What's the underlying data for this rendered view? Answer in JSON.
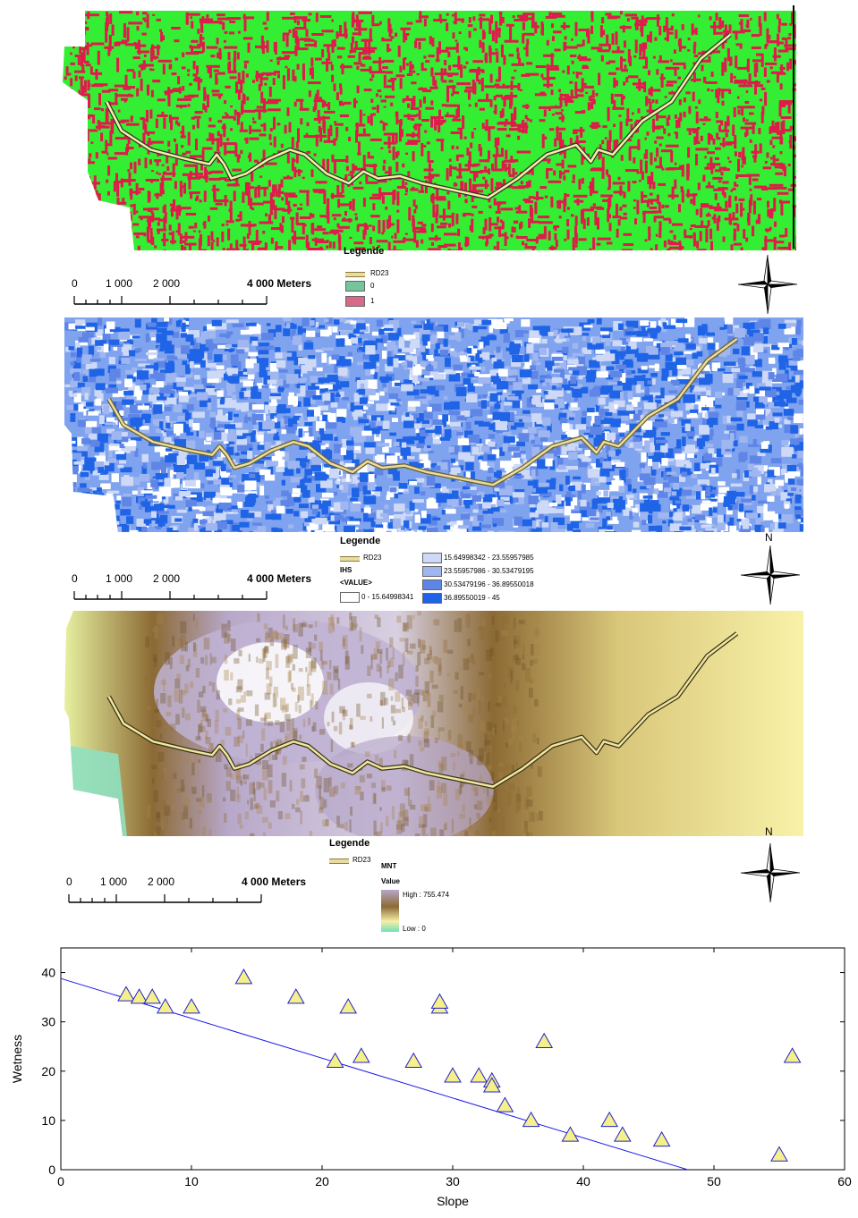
{
  "maps": [
    {
      "legend_title": "Legende",
      "legend_items": [
        {
          "label": "RD23",
          "type": "line",
          "color": "#b8ad6a"
        },
        {
          "label": "0",
          "type": "fill",
          "color": "#74c69a"
        },
        {
          "label": "1",
          "type": "fill",
          "color": "#d8698a"
        }
      ],
      "scale_labels": [
        "0",
        "1 000",
        "2 000",
        "4 000 Meters"
      ],
      "north_label": "",
      "colors": {
        "background": "#33ee33",
        "feature": "#e01a4a",
        "road": "#f4f0a0"
      }
    },
    {
      "legend_title": "Legende",
      "legend_road": "RD23",
      "legend_layer": "IHS",
      "legend_field": "<VALUE>",
      "legend_classes": [
        {
          "label": "0 - 15.64998341",
          "color": "#ffffff"
        },
        {
          "label": "15.64998342 - 23.55957985",
          "color": "#cdd9f7"
        },
        {
          "label": "23.55957986 - 30.53479195",
          "color": "#9fb6f0"
        },
        {
          "label": "30.53479196 - 36.89550018",
          "color": "#5f86e6"
        },
        {
          "label": "36.89550019 - 45",
          "color": "#1f64e6"
        }
      ],
      "scale_labels": [
        "0",
        "1 000",
        "2 000",
        "4 000 Meters"
      ],
      "north_label": "N"
    },
    {
      "legend_title": "Legende",
      "legend_road": "RD23",
      "legend_layer": "MNT",
      "legend_field": "Value",
      "ramp_high": "High : 755.474",
      "ramp_low": "Low : 0",
      "ramp_colors": [
        "#b7a7c9",
        "#8c6a34",
        "#f6efa8",
        "#6fe0b8"
      ],
      "scale_labels": [
        "0",
        "1 000",
        "2 000",
        "4 000 Meters"
      ],
      "north_label": "N"
    }
  ],
  "chart_data": {
    "type": "scatter",
    "xlabel": "Slope",
    "ylabel": "Wetness",
    "xlim": [
      0,
      60
    ],
    "ylim": [
      0,
      45
    ],
    "xticks": [
      0,
      10,
      20,
      30,
      40,
      50,
      60
    ],
    "yticks": [
      0,
      10,
      20,
      30,
      40
    ],
    "points": [
      [
        5,
        35.5
      ],
      [
        6,
        35
      ],
      [
        7,
        35
      ],
      [
        8,
        33
      ],
      [
        10,
        33
      ],
      [
        14,
        39
      ],
      [
        18,
        35
      ],
      [
        21,
        22
      ],
      [
        22,
        33
      ],
      [
        23,
        23
      ],
      [
        27,
        22
      ],
      [
        29,
        33
      ],
      [
        29,
        34
      ],
      [
        30,
        19
      ],
      [
        32,
        19
      ],
      [
        33,
        18
      ],
      [
        33,
        17
      ],
      [
        34,
        13
      ],
      [
        36,
        10
      ],
      [
        37,
        26
      ],
      [
        39,
        7
      ],
      [
        42,
        10
      ],
      [
        43,
        7
      ],
      [
        46,
        6
      ],
      [
        55,
        3
      ],
      [
        56,
        23
      ]
    ],
    "fit_line": {
      "x": [
        0,
        48
      ],
      "y": [
        38.8,
        0
      ]
    },
    "colors": {
      "marker_fill": "#f5f08c",
      "marker_stroke": "#2222cc",
      "line": "#1a1aee"
    }
  }
}
